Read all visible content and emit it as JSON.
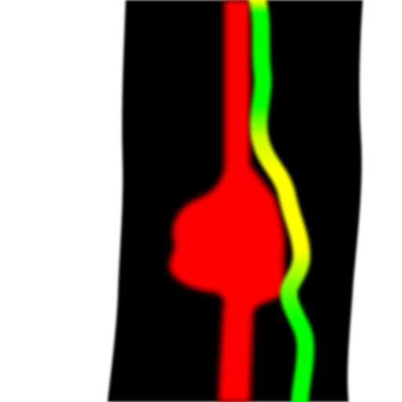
{
  "colors": {
    "background": "#ffffff",
    "band": "#000000",
    "red_region": "#ff0000",
    "green_line": "#00ff00",
    "yellow_overlap": "#ffff00"
  }
}
